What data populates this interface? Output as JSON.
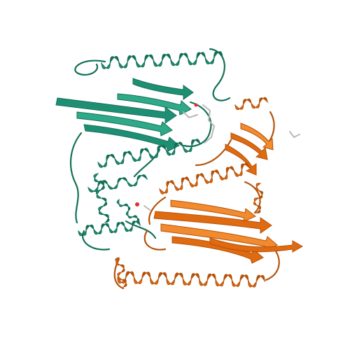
{
  "figure": {
    "subject": "protein-homodimer-ribbon",
    "background_color": "#ffffff",
    "chains": [
      {
        "id": "A",
        "color": "#1f8f74",
        "color_light": "#2faa88",
        "color_dark": "#137058",
        "position": "upper-left"
      },
      {
        "id": "B",
        "color": "#e06a10",
        "color_light": "#f28a2e",
        "color_dark": "#b5520a",
        "position": "lower-right"
      }
    ],
    "ligand_colors": {
      "carbon": "#b8b8b8",
      "oxygen": "#e03030"
    },
    "loop_color": "#555555"
  }
}
